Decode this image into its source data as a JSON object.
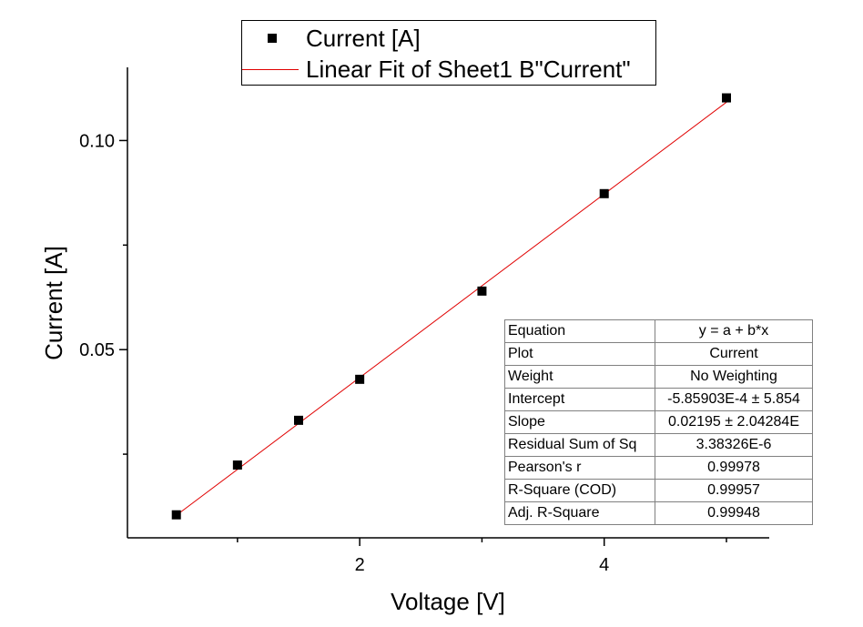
{
  "chart_data": {
    "type": "scatter",
    "xlabel": "Voltage [V]",
    "ylabel": "Current [A]",
    "xlim": [
      0.1,
      5.35
    ],
    "ylim": [
      0.005,
      0.1175
    ],
    "x_major_ticks": [
      2,
      4
    ],
    "x_minor_ticks": [
      1,
      3,
      5
    ],
    "y_major_ticks": [
      0.05,
      0.1
    ],
    "y_minor_ticks": [
      0.025,
      0.075
    ],
    "x_tick_labels": [
      "2",
      "4"
    ],
    "y_tick_labels": [
      "0.05",
      "0.10"
    ],
    "grid": false,
    "series": [
      {
        "name": "Current [A]",
        "marker": "square",
        "color": "#000000",
        "x": [
          0.5,
          1.0,
          1.5,
          2.0,
          3.0,
          4.0,
          5.0
        ],
        "y": [
          0.0105,
          0.0224,
          0.0331,
          0.0429,
          0.064,
          0.0873,
          0.1102
        ]
      }
    ],
    "fit": {
      "name": "Linear Fit of Sheet1 B\"Current\"",
      "color": "#e00000",
      "intercept": -0.000585903,
      "slope": 0.02195,
      "x_range": [
        0.5,
        5.0
      ]
    },
    "legend": {
      "position": "top",
      "entries": [
        "Current [A]",
        "Linear Fit of Sheet1 B\"Current\""
      ]
    },
    "fit_table": [
      {
        "key": "Equation",
        "value": "y = a + b*x"
      },
      {
        "key": "Plot",
        "value": "Current"
      },
      {
        "key": "Weight",
        "value": "No Weighting"
      },
      {
        "key": "Intercept",
        "value": "-5.85903E-4 ± 5.854"
      },
      {
        "key": "Slope",
        "value": "0.02195 ± 2.04284E"
      },
      {
        "key": "Residual Sum of Sq",
        "value": "3.38326E-6"
      },
      {
        "key": "Pearson's r",
        "value": "0.99978"
      },
      {
        "key": "R-Square (COD)",
        "value": "0.99957"
      },
      {
        "key": "Adj. R-Square",
        "value": "0.99948"
      }
    ]
  }
}
